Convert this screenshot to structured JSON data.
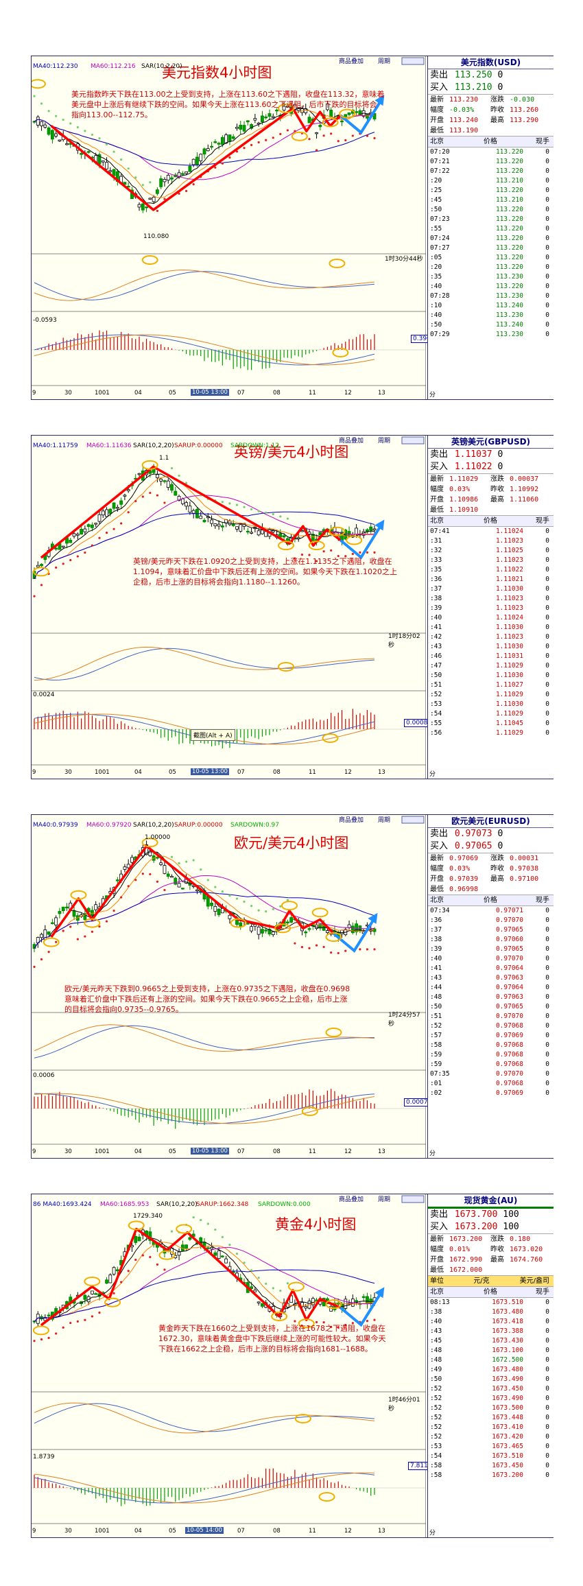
{
  "panels": [
    {
      "id": "usd",
      "top": 0,
      "chart_title": "美元指数4小时图",
      "indicator_labels": {
        "ma40": "MA40:112.230",
        "ma60": "MA60:112.216",
        "sar": "SAR(10,2,20)"
      },
      "comment": [
        "美元指数昨天下跌在113.00之上受到支持，上涨在113.60之下遇阻，收盘在113.32，意味着",
        "美元盘中上涨后有继续下跌的空间。如果今天上涨在113.60之下遇阻，后市下跌的目标将会",
        "指向113.00--112.75。"
      ],
      "peak_label": "110.080",
      "timer": "1时30分44秒",
      "macd_label": "-0.0593",
      "box_value": "0.396",
      "x_labels": [
        "9",
        "30",
        "1001",
        "04",
        "05",
        "10-05 13:00",
        "07",
        "08",
        "11",
        "12",
        "13"
      ],
      "bottom_label": "分",
      "top_buttons": [
        "商品叠加",
        "周期"
      ],
      "quote": {
        "title": "美元指数(USD)",
        "sell_label": "卖出",
        "sell": "113.250",
        "sell_vol": "0",
        "buy_label": "买入",
        "buy": "113.210",
        "buy_vol": "0",
        "stats": [
          [
            "最新",
            "113.230",
            "涨跌",
            "-0.030"
          ],
          [
            "幅度",
            "-0.03%",
            "昨收",
            "113.260"
          ],
          [
            "开盘",
            "113.240",
            "最高",
            "113.290"
          ],
          [
            "最低",
            "113.190",
            "",
            ""
          ]
        ],
        "header": [
          "北京",
          "价格",
          "现手"
        ],
        "ticks": [
          [
            "07:20",
            "113.220",
            "0"
          ],
          [
            "07:21",
            "113.220",
            "0"
          ],
          [
            "07:22",
            "113.220",
            "0"
          ],
          [
            ":20",
            "113.210",
            "0"
          ],
          [
            ":25",
            "113.220",
            "0"
          ],
          [
            ":45",
            "113.210",
            "0"
          ],
          [
            ":50",
            "113.220",
            "0"
          ],
          [
            "07:23",
            "113.220",
            "0"
          ],
          [
            ":55",
            "113.220",
            "0"
          ],
          [
            "07:24",
            "113.220",
            "0"
          ],
          [
            "07:27",
            "113.220",
            "0"
          ],
          [
            ":05",
            "113.220",
            "0"
          ],
          [
            ":20",
            "113.220",
            "0"
          ],
          [
            ":35",
            "113.230",
            "0"
          ],
          [
            ":40",
            "113.220",
            "0"
          ],
          [
            "07:28",
            "113.230",
            "0"
          ],
          [
            ":10",
            "113.240",
            "0"
          ],
          [
            ":40",
            "113.230",
            "0"
          ],
          [
            ":50",
            "113.240",
            "0"
          ],
          [
            "07:29",
            "113.230",
            "0"
          ]
        ]
      }
    },
    {
      "id": "gbp",
      "top": 0,
      "chart_title": "英镑/美元4小时图",
      "indicator_labels": {
        "ma40": "MA40:1.11759",
        "ma60": "MA60:1.11636",
        "sar": "SAR(10,2,20)",
        "sarup": "SARUP:0.00000",
        "sardown": "SARDOWN:1.12"
      },
      "comment": [
        "英镑/美元昨天下跌在1.0920之上受到支持，上涨在1.1135之下遇阻，收盘在",
        "1.1094，意味着汇价盘中下跌后还有上涨的空间。如果今天下跌在1.1020之上",
        "企稳，后市上涨的目标将会指向1.1180--1.1260。"
      ],
      "peak_label": "1.1",
      "timer": "1时18分02秒",
      "macd_label": "0.0024",
      "box_value": "0.00088",
      "tooltip": "截图(Alt + A)",
      "x_labels": [
        "9",
        "30",
        "1001",
        "04",
        "05",
        "10-05 13:00",
        "07",
        "08",
        "11",
        "12",
        "13"
      ],
      "bottom_label": "分",
      "top_buttons": [
        "商品叠加",
        "周期"
      ],
      "quote": {
        "title": "英镑美元(GBPUSD)",
        "sell_label": "卖出",
        "sell": "1.11037",
        "sell_vol": "0",
        "buy_label": "买入",
        "buy": "1.11022",
        "buy_vol": "0",
        "stats": [
          [
            "最新",
            "1.11029",
            "涨跌",
            "0.00037"
          ],
          [
            "幅度",
            "0.03%",
            "昨收",
            "1.10992"
          ],
          [
            "开盘",
            "1.10986",
            "最高",
            "1.11060"
          ],
          [
            "最低",
            "1.10910",
            "",
            ""
          ]
        ],
        "header": [
          "北京",
          "价格",
          "现手"
        ],
        "ticks": [
          [
            "07:41",
            "1.11024",
            "0"
          ],
          [
            ":31",
            "1.11023",
            "0"
          ],
          [
            ":32",
            "1.11025",
            "0"
          ],
          [
            ":33",
            "1.11023",
            "0"
          ],
          [
            ":35",
            "1.11022",
            "0"
          ],
          [
            ":36",
            "1.11021",
            "0"
          ],
          [
            ":37",
            "1.11030",
            "0"
          ],
          [
            ":38",
            "1.11023",
            "0"
          ],
          [
            ":39",
            "1.11023",
            "0"
          ],
          [
            ":40",
            "1.11024",
            "0"
          ],
          [
            ":41",
            "1.11030",
            "0"
          ],
          [
            ":42",
            "1.11023",
            "0"
          ],
          [
            ":43",
            "1.11030",
            "0"
          ],
          [
            ":46",
            "1.11031",
            "0"
          ],
          [
            ":47",
            "1.11029",
            "0"
          ],
          [
            ":50",
            "1.11030",
            "0"
          ],
          [
            ":51",
            "1.11027",
            "0"
          ],
          [
            ":52",
            "1.11029",
            "0"
          ],
          [
            ":53",
            "1.11030",
            "0"
          ],
          [
            ":54",
            "1.11029",
            "0"
          ],
          [
            ":55",
            "1.11045",
            "0"
          ],
          [
            ":56",
            "1.11029",
            "0"
          ]
        ]
      }
    },
    {
      "id": "eur",
      "top": 0,
      "chart_title": "欧元/美元4小时图",
      "indicator_labels": {
        "ma40": "MA40:0.97939",
        "ma60": "MA60:0.97920",
        "sar": "SAR(10,2,20)",
        "sarup": "SARUP:0.00000",
        "sardown": "SARDOWN:0.97"
      },
      "comment": [
        "欧元/美元昨天下跌到0.9665之上受到支持，上涨在0.9735之下遇阻，收盘在0.9698",
        "意味着汇价盘中下跌后还有上涨的空间。如果今天下跌在0.9665之上企稳，后市上涨",
        "的目标将会指向0.9735--0.9765。"
      ],
      "peak_label": "1.00000",
      "timer": "1时24分57秒",
      "macd_label": "0.0006",
      "box_value": "0.00078",
      "x_labels": [
        "9",
        "30",
        "1001",
        "04",
        "05",
        "10-05 13:00",
        "07",
        "08",
        "11",
        "12",
        "13"
      ],
      "bottom_label": "分",
      "top_buttons": [
        "商品叠加",
        "周期"
      ],
      "quote": {
        "title": "欧元美元(EURUSD)",
        "sell_label": "卖出",
        "sell": "0.97073",
        "sell_vol": "0",
        "buy_label": "买入",
        "buy": "0.97065",
        "buy_vol": "0",
        "stats": [
          [
            "最新",
            "0.97069",
            "涨跌",
            "0.00031"
          ],
          [
            "幅度",
            "0.03%",
            "昨收",
            "0.97038"
          ],
          [
            "开盘",
            "0.97039",
            "最高",
            "0.97100"
          ],
          [
            "最低",
            "0.96998",
            "",
            ""
          ]
        ],
        "header": [
          "北京",
          "价格",
          "现手"
        ],
        "ticks": [
          [
            "07:34",
            "0.97071",
            "0"
          ],
          [
            ":36",
            "0.97070",
            "0"
          ],
          [
            ":37",
            "0.97065",
            "0"
          ],
          [
            ":38",
            "0.97060",
            "0"
          ],
          [
            ":39",
            "0.97065",
            "0"
          ],
          [
            ":40",
            "0.97070",
            "0"
          ],
          [
            ":41",
            "0.97064",
            "0"
          ],
          [
            ":43",
            "0.97063",
            "0"
          ],
          [
            ":44",
            "0.97064",
            "0"
          ],
          [
            ":48",
            "0.97063",
            "0"
          ],
          [
            ":50",
            "0.97065",
            "0"
          ],
          [
            ":51",
            "0.97070",
            "0"
          ],
          [
            ":52",
            "0.97068",
            "0"
          ],
          [
            ":57",
            "0.97069",
            "0"
          ],
          [
            ":58",
            "0.97068",
            "0"
          ],
          [
            ":59",
            "0.97068",
            "0"
          ],
          [
            ":59",
            "0.97068",
            "0"
          ],
          [
            "07:35",
            "0.97070",
            "0"
          ],
          [
            ":01",
            "0.97068",
            "0"
          ],
          [
            ":02",
            "0.97069",
            "0"
          ]
        ]
      }
    },
    {
      "id": "au",
      "top": 0,
      "chart_title": "黄金4小时图",
      "indicator_labels": {
        "ma40": "86 MA40:1693.424",
        "ma60": "MA60:1685.953",
        "sar": "SAR(10,2,20)",
        "sarup": "SARUP:1662.348",
        "sardown": "SARDOWN:0.000"
      },
      "comment": [
        "黄金昨天下跌在1660之上受到支持，上涨在1678之下遇阻，收盘在",
        "1672.30，意味着黄金盘中下跌后继续上涨的可能性较大。如果今天",
        "下跌在1662之上企稳，后市上涨的目标将会指向1681--1688。"
      ],
      "peak_label": "1729.340",
      "timer": "1时46分01秒",
      "macd_label": "1.8739",
      "box_value": "7.811",
      "x_labels": [
        "9",
        "30",
        "1001",
        "04",
        "05",
        "10-05 14:00",
        "07",
        "08",
        "11",
        "12",
        "13"
      ],
      "bottom_label": "分",
      "top_buttons": [
        "商品叠加",
        "周期"
      ],
      "quote": {
        "title": "现货黄金(AU)",
        "sell_label": "卖出",
        "sell": "1673.700",
        "sell_vol": "100",
        "buy_label": "买入",
        "buy": "1673.200",
        "buy_vol": "100",
        "stats": [
          [
            "最新",
            "1673.200",
            "涨跌",
            "0.180"
          ],
          [
            "幅度",
            "0.01%",
            "昨收",
            "1673.020"
          ],
          [
            "开盘",
            "1672.990",
            "最高",
            "1674.760"
          ],
          [
            "最低",
            "1672.000",
            "",
            ""
          ]
        ],
        "header": [
          "单位",
          "元/克",
          "美元/盎司"
        ],
        "header2": [
          "北京",
          "价格",
          "现手"
        ],
        "ticks": [
          [
            "08:13",
            "1673.510",
            "0"
          ],
          [
            ":38",
            "1673.480",
            "0"
          ],
          [
            ":40",
            "1673.418",
            "0"
          ],
          [
            ":43",
            "1673.388",
            "0"
          ],
          [
            ":45",
            "1673.430",
            "0"
          ],
          [
            ":48",
            "1673.100",
            "0"
          ],
          [
            ":48",
            "1672.500",
            "0"
          ],
          [
            ":49",
            "1673.480",
            "0"
          ],
          [
            ":50",
            "1673.490",
            "0"
          ],
          [
            ":52",
            "1673.450",
            "0"
          ],
          [
            ":52",
            "1673.490",
            "0"
          ],
          [
            ":52",
            "1673.500",
            "0"
          ],
          [
            ":52",
            "1673.448",
            "0"
          ],
          [
            ":52",
            "1673.410",
            "0"
          ],
          [
            ":52",
            "1673.420",
            "0"
          ],
          [
            ":53",
            "1673.465",
            "0"
          ],
          [
            ":54",
            "1673.510",
            "0"
          ],
          [
            ":58",
            "1673.450",
            "0"
          ],
          [
            ":58",
            "1673.200",
            "0"
          ]
        ]
      }
    }
  ],
  "chart_data": [
    {
      "type": "line",
      "title": "美元指数4小时图",
      "instrument": "USD",
      "last": 113.23,
      "high": 113.29,
      "low": 113.19,
      "marked_low": 110.08,
      "support": 113.0,
      "resistance": 113.6,
      "close": 113.32,
      "targets": [
        113.0,
        112.75
      ],
      "ylim": [
        109.8,
        114.0
      ]
    },
    {
      "type": "line",
      "title": "英镑/美元4小时图",
      "instrument": "GBPUSD",
      "last": 1.11029,
      "high": 1.1106,
      "low": 1.1091,
      "support": 1.092,
      "resistance": 1.1135,
      "close": 1.1094,
      "targets": [
        1.118,
        1.126
      ],
      "ylim": [
        1.08,
        1.15
      ]
    },
    {
      "type": "line",
      "title": "欧元/美元4小时图",
      "instrument": "EURUSD",
      "last": 0.97069,
      "high": 0.971,
      "low": 0.96998,
      "marked_high": 1.0,
      "support": 0.9665,
      "resistance": 0.9735,
      "close": 0.9698,
      "targets": [
        0.9735,
        0.9765
      ],
      "ylim": [
        0.955,
        1.005
      ]
    },
    {
      "type": "line",
      "title": "黄金4小时图",
      "instrument": "AU",
      "last": 1673.2,
      "high": 1674.76,
      "low": 1672.0,
      "marked_high": 1729.34,
      "support": 1660,
      "resistance": 1678,
      "close": 1672.3,
      "targets": [
        1681,
        1688
      ],
      "ylim": [
        1640,
        1735
      ]
    }
  ]
}
